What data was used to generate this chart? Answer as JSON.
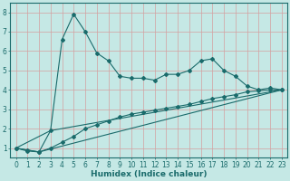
{
  "background_color": "#c5e8e5",
  "grid_color": "#d4a0a0",
  "line_color": "#1a6b6b",
  "xlabel": "Humidex (Indice chaleur)",
  "xlabel_fontsize": 6.5,
  "tick_fontsize": 5.5,
  "xlim": [
    -0.5,
    23.5
  ],
  "ylim": [
    0.5,
    8.5
  ],
  "yticks": [
    1,
    2,
    3,
    4,
    5,
    6,
    7,
    8
  ],
  "xticks": [
    0,
    1,
    2,
    3,
    4,
    5,
    6,
    7,
    8,
    9,
    10,
    11,
    12,
    13,
    14,
    15,
    16,
    17,
    18,
    19,
    20,
    21,
    22,
    23
  ],
  "line1_x": [
    0,
    1,
    2,
    3,
    4,
    5,
    6,
    7,
    8,
    9,
    10,
    11,
    12,
    13,
    14,
    15,
    16,
    17,
    18,
    19,
    20,
    21,
    22,
    23
  ],
  "line1_y": [
    1.0,
    0.9,
    0.8,
    1.9,
    6.6,
    7.9,
    7.0,
    5.9,
    5.5,
    4.7,
    4.6,
    4.6,
    4.5,
    4.8,
    4.8,
    5.0,
    5.5,
    5.6,
    5.0,
    4.7,
    4.2,
    4.0,
    4.1,
    4.0
  ],
  "line2_x": [
    0,
    1,
    2,
    3,
    4,
    5,
    6,
    7,
    8,
    9,
    10,
    11,
    12,
    13,
    14,
    15,
    16,
    17,
    18,
    19,
    20,
    21,
    22,
    23
  ],
  "line2_y": [
    1.0,
    0.85,
    0.8,
    1.0,
    1.3,
    1.6,
    2.0,
    2.2,
    2.4,
    2.6,
    2.75,
    2.85,
    2.95,
    3.05,
    3.15,
    3.25,
    3.4,
    3.55,
    3.65,
    3.75,
    3.9,
    3.95,
    4.0,
    4.0
  ],
  "line3_x": [
    0,
    3,
    23
  ],
  "line3_y": [
    1.0,
    1.9,
    4.0
  ],
  "line4_x": [
    0,
    2,
    23
  ],
  "line4_y": [
    1.0,
    0.8,
    4.0
  ]
}
